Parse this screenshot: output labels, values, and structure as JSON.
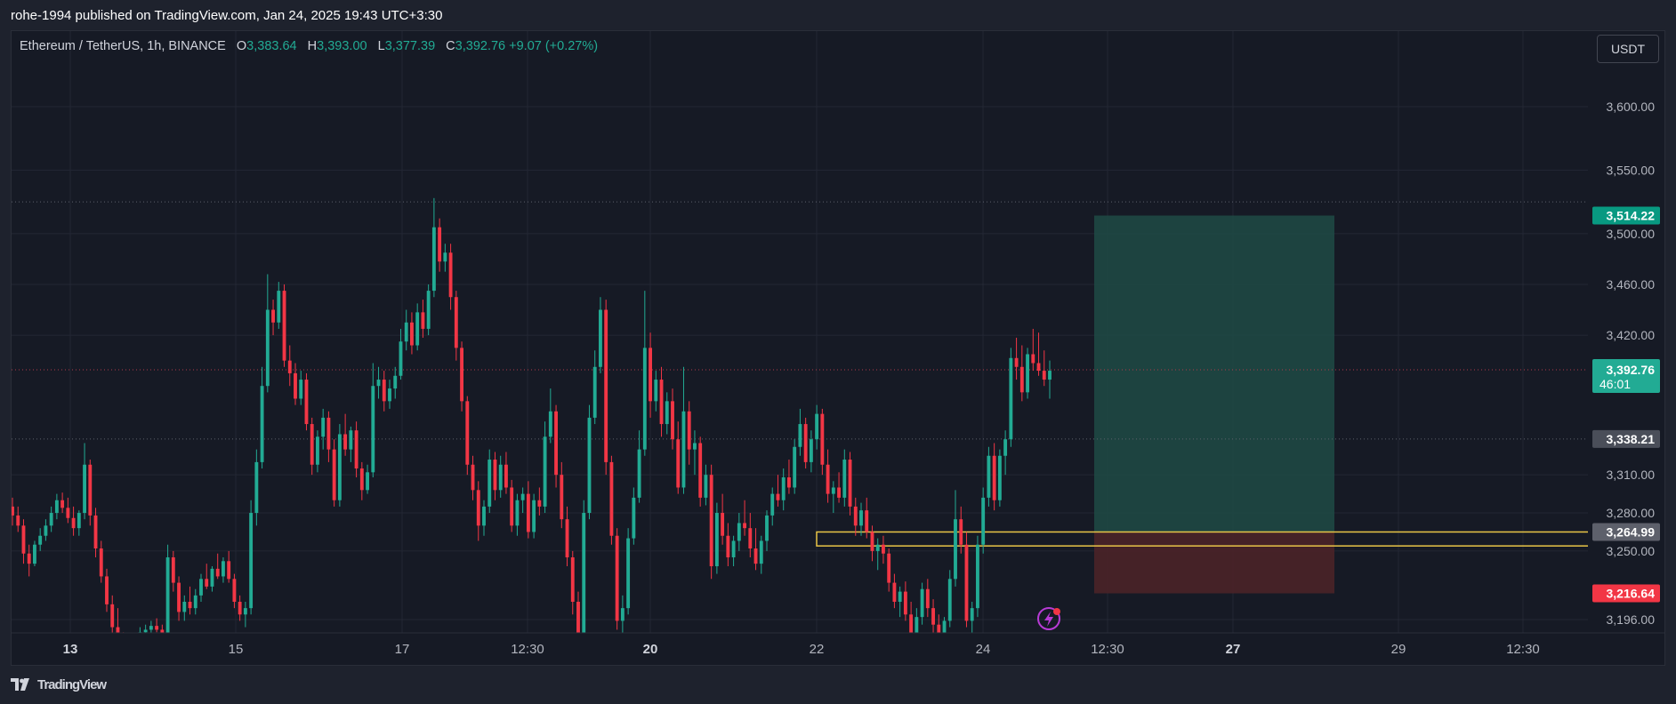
{
  "header": {
    "published_text": "rohe-1994 published on TradingView.com, Jan 24, 2025 19:43 UTC+3:30"
  },
  "legend": {
    "symbol": "Ethereum / TetherUS, 1h, BINANCE",
    "o_label": "O",
    "o_value": "3,383.64",
    "h_label": "H",
    "h_value": "3,393.00",
    "l_label": "L",
    "l_value": "3,377.39",
    "c_label": "C",
    "c_value": "3,392.76",
    "change": "+9.07 (+0.27%)"
  },
  "currency_button": "USDT",
  "footer": {
    "brand": "TradingView"
  },
  "colors": {
    "up": "#22ab94",
    "down": "#f23645",
    "background": "#161a25",
    "grid": "#232734",
    "target_zone": "#1f4b45",
    "stop_zone": "#4a2328",
    "zone_highlight": "#e8c547"
  },
  "icons": [
    "lightning-icon",
    "tradingview-logo-icon"
  ],
  "chart_data": {
    "type": "candlestick",
    "symbol": "ETHUSDT",
    "interval": "1h",
    "exchange": "BINANCE",
    "ylim": [
      3180,
      3640
    ],
    "y_ticks": [
      "3,600.00",
      "3,550.00",
      "3,500.00",
      "3,460.00",
      "3,420.00",
      "3,310.00",
      "3,280.00",
      "3,250.00",
      "3,196.00"
    ],
    "x_ticks": [
      {
        "label": "13",
        "bold": true
      },
      {
        "label": "15",
        "bold": false
      },
      {
        "label": "17",
        "bold": false
      },
      {
        "label": "12:30",
        "bold": false
      },
      {
        "label": "20",
        "bold": true
      },
      {
        "label": "22",
        "bold": false
      },
      {
        "label": "24",
        "bold": false
      },
      {
        "label": "12:30",
        "bold": false
      },
      {
        "label": "27",
        "bold": true
      },
      {
        "label": "29",
        "bold": false
      },
      {
        "label": "12:30",
        "bold": false
      }
    ],
    "last_price": 3392.76,
    "last_price_label": "3,392.76",
    "countdown": "46:01",
    "horizontal_levels": [
      {
        "price": 3525,
        "style": "dotted"
      },
      {
        "price": 3392.76,
        "style": "dotted-red"
      },
      {
        "price": 3338.21,
        "style": "dotted"
      }
    ],
    "price_labels": [
      {
        "price": 3514.22,
        "text": "3,514.22",
        "color": "#089981"
      },
      {
        "price": 3338.21,
        "text": "3,338.21",
        "color": "#4a4e59"
      },
      {
        "price": 3264.99,
        "text": "3,264.99",
        "color": "#5d606b"
      },
      {
        "price": 3216.64,
        "text": "3,216.64",
        "color": "#f23645"
      }
    ],
    "long_position": {
      "entry": 3264.99,
      "target": 3514.22,
      "stop": 3216.64
    },
    "rectangle_zone": {
      "top": 3264.99,
      "bottom": 3254
    },
    "candles": [
      [
        3285,
        3292,
        3270,
        3278
      ],
      [
        3278,
        3285,
        3265,
        3270
      ],
      [
        3270,
        3275,
        3240,
        3248
      ],
      [
        3248,
        3255,
        3230,
        3240
      ],
      [
        3240,
        3258,
        3238,
        3255
      ],
      [
        3255,
        3268,
        3250,
        3262
      ],
      [
        3262,
        3275,
        3258,
        3270
      ],
      [
        3270,
        3285,
        3265,
        3280
      ],
      [
        3280,
        3295,
        3275,
        3290
      ],
      [
        3290,
        3296,
        3280,
        3284
      ],
      [
        3284,
        3292,
        3272,
        3276
      ],
      [
        3276,
        3285,
        3262,
        3268
      ],
      [
        3268,
        3282,
        3262,
        3280
      ],
      [
        3280,
        3335,
        3275,
        3318
      ],
      [
        3318,
        3322,
        3270,
        3278
      ],
      [
        3278,
        3284,
        3245,
        3252
      ],
      [
        3252,
        3258,
        3225,
        3230
      ],
      [
        3230,
        3236,
        3202,
        3208
      ],
      [
        3208,
        3215,
        3180,
        3190
      ],
      [
        3190,
        3205,
        3178,
        3185
      ],
      [
        3185,
        3186,
        3170,
        3172
      ],
      [
        3172,
        3180,
        3166,
        3176
      ],
      [
        3176,
        3185,
        3172,
        3182
      ],
      [
        3182,
        3190,
        3178,
        3186
      ],
      [
        3186,
        3192,
        3180,
        3188
      ],
      [
        3188,
        3195,
        3182,
        3191
      ],
      [
        3191,
        3197,
        3186,
        3188
      ],
      [
        3188,
        3192,
        3178,
        3184
      ],
      [
        3184,
        3255,
        3180,
        3245
      ],
      [
        3245,
        3250,
        3218,
        3225
      ],
      [
        3225,
        3230,
        3195,
        3202
      ],
      [
        3202,
        3215,
        3195,
        3210
      ],
      [
        3210,
        3222,
        3200,
        3205
      ],
      [
        3205,
        3220,
        3200,
        3215
      ],
      [
        3215,
        3232,
        3210,
        3228
      ],
      [
        3228,
        3240,
        3220,
        3222
      ],
      [
        3222,
        3238,
        3218,
        3236
      ],
      [
        3236,
        3248,
        3228,
        3230
      ],
      [
        3230,
        3245,
        3225,
        3242
      ],
      [
        3242,
        3250,
        3225,
        3228
      ],
      [
        3228,
        3232,
        3205,
        3210
      ],
      [
        3210,
        3215,
        3195,
        3200
      ],
      [
        3200,
        3210,
        3190,
        3205
      ],
      [
        3205,
        3290,
        3200,
        3280
      ],
      [
        3280,
        3330,
        3270,
        3320
      ],
      [
        3320,
        3395,
        3315,
        3380
      ],
      [
        3380,
        3468,
        3375,
        3440
      ],
      [
        3440,
        3448,
        3420,
        3430
      ],
      [
        3430,
        3462,
        3425,
        3455
      ],
      [
        3455,
        3460,
        3395,
        3400
      ],
      [
        3400,
        3412,
        3380,
        3390
      ],
      [
        3390,
        3398,
        3365,
        3370
      ],
      [
        3370,
        3392,
        3365,
        3385
      ],
      [
        3385,
        3390,
        3345,
        3350
      ],
      [
        3350,
        3355,
        3310,
        3318
      ],
      [
        3318,
        3345,
        3312,
        3340
      ],
      [
        3340,
        3362,
        3330,
        3355
      ],
      [
        3355,
        3360,
        3320,
        3330
      ],
      [
        3330,
        3338,
        3285,
        3290
      ],
      [
        3290,
        3350,
        3285,
        3342
      ],
      [
        3342,
        3358,
        3325,
        3330
      ],
      [
        3330,
        3348,
        3320,
        3345
      ],
      [
        3345,
        3352,
        3308,
        3315
      ],
      [
        3315,
        3320,
        3290,
        3298
      ],
      [
        3298,
        3318,
        3295,
        3312
      ],
      [
        3312,
        3398,
        3308,
        3380
      ],
      [
        3380,
        3395,
        3370,
        3385
      ],
      [
        3385,
        3392,
        3360,
        3368
      ],
      [
        3368,
        3385,
        3362,
        3378
      ],
      [
        3378,
        3395,
        3370,
        3388
      ],
      [
        3388,
        3425,
        3385,
        3415
      ],
      [
        3415,
        3440,
        3408,
        3430
      ],
      [
        3430,
        3438,
        3405,
        3412
      ],
      [
        3412,
        3445,
        3408,
        3438
      ],
      [
        3438,
        3448,
        3418,
        3425
      ],
      [
        3425,
        3460,
        3420,
        3455
      ],
      [
        3455,
        3528,
        3450,
        3505
      ],
      [
        3505,
        3512,
        3470,
        3478
      ],
      [
        3478,
        3492,
        3470,
        3485
      ],
      [
        3485,
        3492,
        3440,
        3450
      ],
      [
        3450,
        3455,
        3400,
        3410
      ],
      [
        3410,
        3415,
        3360,
        3368
      ],
      [
        3368,
        3372,
        3310,
        3318
      ],
      [
        3318,
        3325,
        3290,
        3298
      ],
      [
        3298,
        3305,
        3258,
        3270
      ],
      [
        3270,
        3290,
        3262,
        3285
      ],
      [
        3285,
        3330,
        3280,
        3322
      ],
      [
        3322,
        3328,
        3290,
        3298
      ],
      [
        3298,
        3325,
        3292,
        3318
      ],
      [
        3318,
        3328,
        3295,
        3300
      ],
      [
        3300,
        3306,
        3265,
        3270
      ],
      [
        3270,
        3295,
        3262,
        3290
      ],
      [
        3290,
        3300,
        3280,
        3295
      ],
      [
        3295,
        3305,
        3260,
        3265
      ],
      [
        3265,
        3295,
        3260,
        3290
      ],
      [
        3290,
        3300,
        3278,
        3285
      ],
      [
        3285,
        3352,
        3280,
        3340
      ],
      [
        3340,
        3378,
        3335,
        3360
      ],
      [
        3360,
        3365,
        3300,
        3310
      ],
      [
        3310,
        3320,
        3268,
        3275
      ],
      [
        3275,
        3285,
        3238,
        3245
      ],
      [
        3245,
        3250,
        3200,
        3210
      ],
      [
        3210,
        3218,
        3170,
        3180
      ],
      [
        3180,
        3290,
        3175,
        3280
      ],
      [
        3280,
        3365,
        3275,
        3355
      ],
      [
        3355,
        3408,
        3350,
        3395
      ],
      [
        3395,
        3450,
        3390,
        3440
      ],
      [
        3440,
        3448,
        3310,
        3320
      ],
      [
        3320,
        3325,
        3255,
        3262
      ],
      [
        3262,
        3268,
        3188,
        3195
      ],
      [
        3195,
        3215,
        3180,
        3205
      ],
      [
        3205,
        3268,
        3200,
        3260
      ],
      [
        3260,
        3300,
        3255,
        3292
      ],
      [
        3292,
        3345,
        3288,
        3330
      ],
      [
        3330,
        3455,
        3325,
        3410
      ],
      [
        3410,
        3422,
        3355,
        3368
      ],
      [
        3368,
        3392,
        3360,
        3385
      ],
      [
        3385,
        3395,
        3340,
        3350
      ],
      [
        3350,
        3375,
        3342,
        3368
      ],
      [
        3368,
        3378,
        3330,
        3338
      ],
      [
        3338,
        3352,
        3295,
        3300
      ],
      [
        3300,
        3395,
        3295,
        3360
      ],
      [
        3360,
        3368,
        3318,
        3330
      ],
      [
        3330,
        3345,
        3310,
        3335
      ],
      [
        3335,
        3340,
        3285,
        3292
      ],
      [
        3292,
        3318,
        3286,
        3310
      ],
      [
        3310,
        3318,
        3228,
        3238
      ],
      [
        3238,
        3288,
        3232,
        3280
      ],
      [
        3280,
        3295,
        3255,
        3262
      ],
      [
        3262,
        3272,
        3238,
        3245
      ],
      [
        3245,
        3262,
        3238,
        3258
      ],
      [
        3258,
        3280,
        3250,
        3272
      ],
      [
        3272,
        3290,
        3262,
        3268
      ],
      [
        3268,
        3280,
        3245,
        3252
      ],
      [
        3252,
        3268,
        3235,
        3240
      ],
      [
        3240,
        3262,
        3232,
        3258
      ],
      [
        3258,
        3282,
        3250,
        3278
      ],
      [
        3278,
        3300,
        3270,
        3295
      ],
      [
        3295,
        3310,
        3285,
        3290
      ],
      [
        3290,
        3315,
        3282,
        3308
      ],
      [
        3308,
        3322,
        3295,
        3300
      ],
      [
        3300,
        3338,
        3295,
        3332
      ],
      [
        3332,
        3362,
        3325,
        3350
      ],
      [
        3350,
        3355,
        3315,
        3320
      ],
      [
        3320,
        3345,
        3312,
        3338
      ],
      [
        3338,
        3365,
        3330,
        3358
      ],
      [
        3358,
        3362,
        3310,
        3318
      ],
      [
        3318,
        3330,
        3288,
        3295
      ],
      [
        3295,
        3305,
        3280,
        3300
      ],
      [
        3300,
        3312,
        3288,
        3292
      ],
      [
        3292,
        3330,
        3285,
        3322
      ],
      [
        3322,
        3328,
        3278,
        3285
      ],
      [
        3285,
        3292,
        3262,
        3270
      ],
      [
        3270,
        3288,
        3262,
        3282
      ],
      [
        3282,
        3292,
        3260,
        3265
      ],
      [
        3265,
        3270,
        3242,
        3250
      ],
      [
        3250,
        3260,
        3235,
        3255
      ],
      [
        3255,
        3262,
        3240,
        3248
      ],
      [
        3248,
        3252,
        3218,
        3225
      ],
      [
        3225,
        3232,
        3205,
        3210
      ],
      [
        3210,
        3222,
        3198,
        3218
      ],
      [
        3218,
        3226,
        3195,
        3200
      ],
      [
        3200,
        3210,
        3180,
        3185
      ],
      [
        3185,
        3205,
        3178,
        3198
      ],
      [
        3198,
        3225,
        3192,
        3220
      ],
      [
        3220,
        3228,
        3198,
        3205
      ],
      [
        3205,
        3212,
        3185,
        3192
      ],
      [
        3192,
        3200,
        3175,
        3180
      ],
      [
        3180,
        3198,
        3172,
        3195
      ],
      [
        3195,
        3235,
        3190,
        3228
      ],
      [
        3228,
        3298,
        3222,
        3275
      ],
      [
        3275,
        3285,
        3248,
        3255
      ],
      [
        3255,
        3265,
        3190,
        3195
      ],
      [
        3195,
        3210,
        3185,
        3205
      ],
      [
        3205,
        3262,
        3198,
        3255
      ],
      [
        3255,
        3300,
        3248,
        3292
      ],
      [
        3292,
        3332,
        3285,
        3325
      ],
      [
        3325,
        3335,
        3282,
        3290
      ],
      [
        3290,
        3330,
        3285,
        3325
      ],
      [
        3325,
        3345,
        3310,
        3338
      ],
      [
        3338,
        3410,
        3332,
        3402
      ],
      [
        3402,
        3418,
        3385,
        3395
      ],
      [
        3395,
        3412,
        3368,
        3375
      ],
      [
        3375,
        3410,
        3370,
        3405
      ],
      [
        3405,
        3425,
        3392,
        3398
      ],
      [
        3398,
        3422,
        3388,
        3392
      ],
      [
        3392,
        3408,
        3380,
        3385
      ],
      [
        3385,
        3400,
        3370,
        3392
      ]
    ]
  }
}
